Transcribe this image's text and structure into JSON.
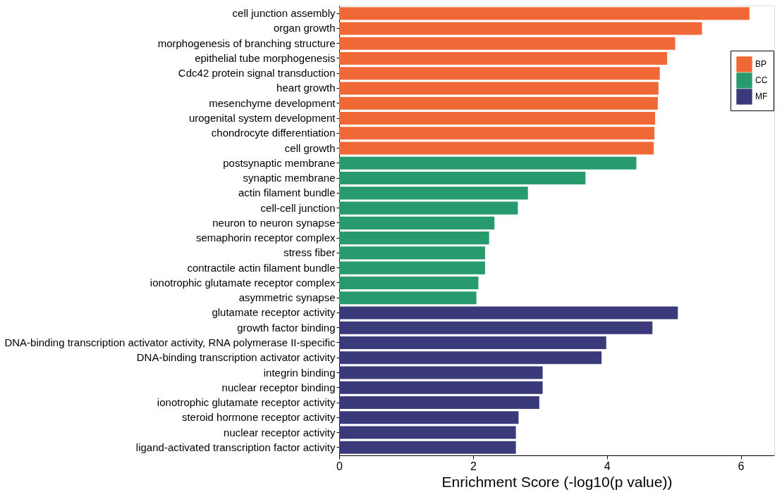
{
  "chart_data": {
    "type": "bar",
    "orientation": "horizontal",
    "xlabel": "Enrichment Score (-log10(p value))",
    "categories": [
      "cell junction assembly",
      "organ growth",
      "morphogenesis of branching structure",
      "epithelial tube morphogenesis",
      "Cdc42 protein signal transduction",
      "heart growth",
      "mesenchyme development",
      "urogenital system development",
      "chondrocyte differentiation",
      "cell growth",
      "postsynaptic membrane",
      "synaptic membrane",
      "actin filament bundle",
      "cell-cell junction",
      "neuron to neuron synapse",
      "semaphorin receptor complex",
      "stress fiber",
      "contractile actin filament bundle",
      "ionotrophic glutamate receptor complex",
      "asymmetric synapse",
      "glutamate receptor activity",
      "growth factor binding",
      "DNA-binding transcription activator activity, RNA polymerase II-specific",
      "DNA-binding transcription activator activity",
      "integrin binding",
      "nuclear receptor binding",
      "ionotrophic glutamate receptor activity",
      "steroid hormone receptor activity",
      "nuclear receptor activity",
      "ligand-activated transcription factor activity"
    ],
    "series": [
      {
        "name": "BP",
        "color": "#f06836",
        "values": [
          6.13,
          5.42,
          5.02,
          4.9,
          4.79,
          4.77,
          4.76,
          4.72,
          4.71,
          4.7,
          null,
          null,
          null,
          null,
          null,
          null,
          null,
          null,
          null,
          null,
          null,
          null,
          null,
          null,
          null,
          null,
          null,
          null,
          null,
          null
        ]
      },
      {
        "name": "CC",
        "color": "#279b6d",
        "values": [
          null,
          null,
          null,
          null,
          null,
          null,
          null,
          null,
          null,
          null,
          4.44,
          3.68,
          2.82,
          2.67,
          2.32,
          2.24,
          2.18,
          2.18,
          2.08,
          2.05,
          null,
          null,
          null,
          null,
          null,
          null,
          null,
          null,
          null,
          null
        ]
      },
      {
        "name": "MF",
        "color": "#3a3a7a",
        "values": [
          null,
          null,
          null,
          null,
          null,
          null,
          null,
          null,
          null,
          null,
          null,
          null,
          null,
          null,
          null,
          null,
          null,
          null,
          null,
          null,
          5.06,
          4.68,
          3.99,
          3.92,
          3.04,
          3.04,
          2.99,
          2.68,
          2.64,
          2.64
        ]
      }
    ],
    "xlim": [
      0,
      6.5
    ],
    "xticks": [
      0,
      2,
      4,
      6
    ],
    "grid": false,
    "legend": "top right"
  }
}
